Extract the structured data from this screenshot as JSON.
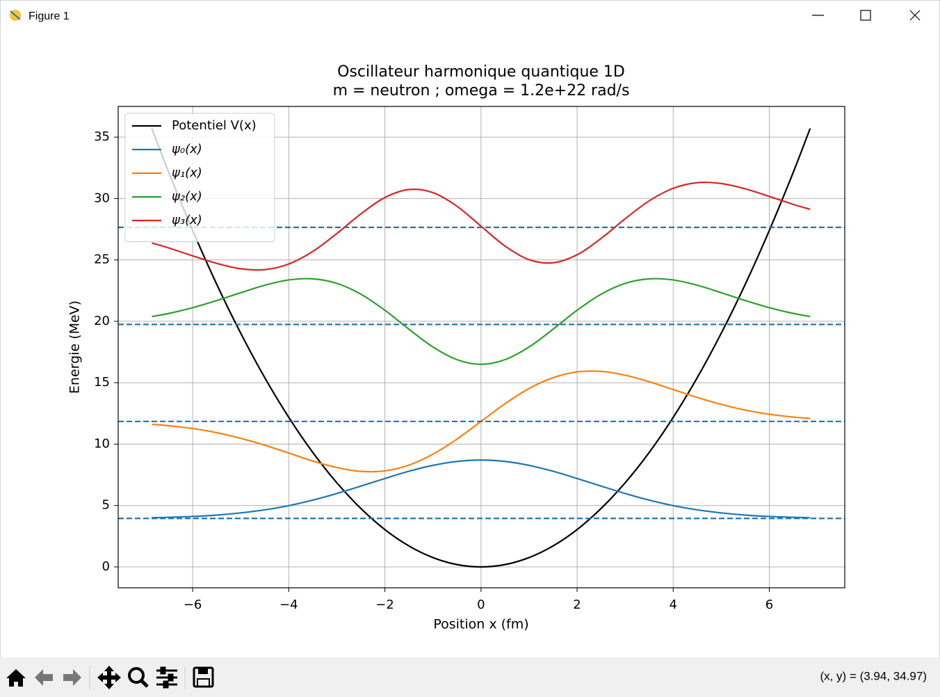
{
  "window": {
    "title": "Figure 1",
    "status": "(x, y) = (3.94, 34.97)"
  },
  "chart_data": {
    "type": "line",
    "title": "Oscillateur harmonique quantique 1D",
    "subtitle": "m = neutron ; omega = 1.2e+22 rad/s",
    "x_label": "Position x (fm)",
    "y_label": "Energie (MeV)",
    "xlim": [
      -7.55,
      7.57
    ],
    "ylim": [
      -1.7,
      37.5
    ],
    "xticks": [
      {
        "value": -6,
        "label": "−6"
      },
      {
        "value": -4,
        "label": "−4"
      },
      {
        "value": -2,
        "label": "−2"
      },
      0,
      2,
      4,
      6
    ],
    "yticks": [
      0,
      5,
      10,
      15,
      20,
      25,
      30,
      35
    ],
    "grid": true,
    "legend": "upper left",
    "x": [
      -6.85,
      -6.5,
      -6,
      -5.5,
      -5,
      -4.5,
      -4,
      -3.5,
      -3,
      -2.5,
      -2,
      -1.5,
      -1,
      -0.5,
      0,
      0.5,
      1,
      1.5,
      2,
      2.5,
      3,
      3.5,
      4,
      4.5,
      5,
      5.5,
      6,
      6.5,
      6.85
    ],
    "series": [
      {
        "name": "Potentiel V(x)",
        "color": "#000000",
        "values": [
          35.71,
          32.15,
          27.4,
          23.02,
          19.03,
          15.41,
          12.18,
          9.32,
          6.85,
          4.76,
          3.04,
          1.71,
          0.76,
          0.19,
          0,
          0.19,
          0.76,
          1.71,
          3.04,
          4.76,
          6.85,
          9.32,
          12.18,
          15.41,
          19.03,
          23.02,
          27.4,
          32.15,
          35.71
        ]
      },
      {
        "name": "ψ₀(x)",
        "color": "#1f77b4",
        "values": [
          4.01,
          4.04,
          4.11,
          4.22,
          4.4,
          4.65,
          4.99,
          5.44,
          5.98,
          6.58,
          7.2,
          7.79,
          8.27,
          8.59,
          8.7,
          8.59,
          8.27,
          7.79,
          7.2,
          6.58,
          5.98,
          5.44,
          4.99,
          4.65,
          4.4,
          4.22,
          4.11,
          4.04,
          4.01
        ]
      },
      {
        "name": "ψ₁(x)",
        "color": "#ff7f0e",
        "values": [
          11.61,
          11.5,
          11.27,
          10.93,
          10.47,
          9.91,
          9.27,
          8.62,
          8.09,
          7.78,
          7.82,
          8.29,
          9.18,
          10.41,
          11.85,
          13.29,
          14.53,
          15.41,
          15.88,
          15.92,
          15.61,
          15.08,
          14.44,
          13.8,
          13.23,
          12.77,
          12.43,
          12.2,
          12.09
        ]
      },
      {
        "name": "ψ₂(x)",
        "color": "#2ca02c",
        "values": [
          20.39,
          20.64,
          21.11,
          21.69,
          22.33,
          22.94,
          23.37,
          23.46,
          23.09,
          22.21,
          20.9,
          19.36,
          17.91,
          16.88,
          16.5,
          16.88,
          17.91,
          19.36,
          20.9,
          22.21,
          23.09,
          23.46,
          23.37,
          22.94,
          22.33,
          21.69,
          21.11,
          20.64,
          20.39
        ]
      },
      {
        "name": "ψ₃(x)",
        "color": "#d62728",
        "values": [
          26.38,
          25.98,
          25.33,
          24.72,
          24.28,
          24.21,
          24.67,
          25.69,
          27.15,
          28.75,
          30.08,
          30.73,
          30.48,
          29.37,
          27.75,
          26.13,
          25.02,
          24.77,
          25.42,
          26.75,
          28.35,
          29.81,
          30.83,
          31.29,
          31.22,
          30.79,
          30.17,
          29.52,
          29.12
        ]
      }
    ],
    "energy_levels": {
      "values": [
        3.95,
        11.85,
        19.75,
        27.65
      ],
      "color": "#1f77b4",
      "style": "dashed"
    }
  }
}
